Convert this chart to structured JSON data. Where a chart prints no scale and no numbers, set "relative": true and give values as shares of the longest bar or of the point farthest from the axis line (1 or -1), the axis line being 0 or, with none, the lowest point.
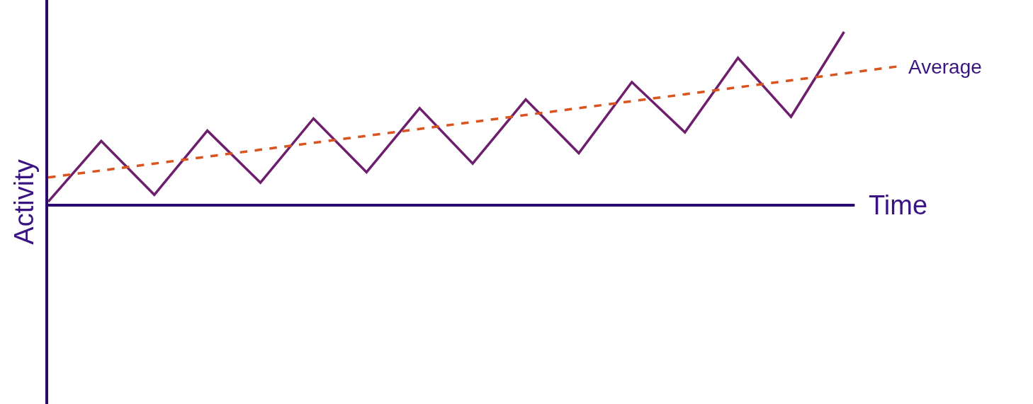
{
  "chart_data": {
    "type": "line",
    "relative": true,
    "xlabel": "Time",
    "ylabel": "Activity",
    "legend": false,
    "marker": "none",
    "categories": [
      null,
      null,
      null,
      null,
      null,
      null,
      null,
      null,
      null,
      null,
      null,
      null,
      null,
      null,
      null,
      null,
      null
    ],
    "series": [
      {
        "color": "#6d1f6e",
        "line_style": "solid",
        "values": [
          0.02,
          0.37,
          0.06,
          0.43,
          0.13,
          0.5,
          0.19,
          0.56,
          0.24,
          0.61,
          0.3,
          0.71,
          0.42,
          0.85,
          0.51,
          1,
          null
        ]
      },
      {
        "name": "Average",
        "color": "#d9541e",
        "line_style": "dashed",
        "values": [
          0.16,
          0.2,
          0.24,
          0.28,
          0.32,
          0.36,
          0.4,
          0.44,
          0.48,
          0.52,
          0.56,
          0.6,
          0.64,
          0.68,
          0.72,
          0.76,
          0.8
        ]
      }
    ]
  }
}
